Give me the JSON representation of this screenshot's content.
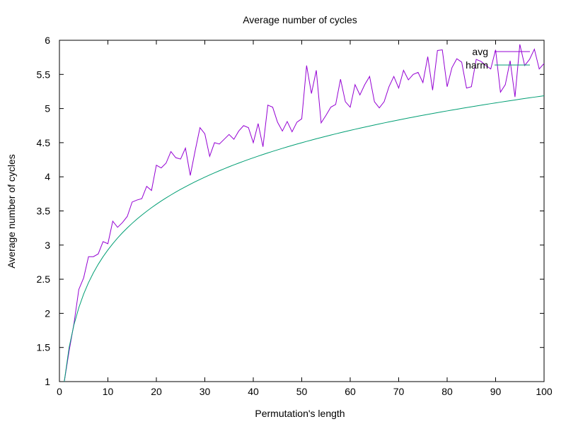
{
  "chart_data": {
    "type": "line",
    "title": "Average number of cycles",
    "xlabel": "Permutation's length",
    "ylabel": "Average number of cycles",
    "xlim": [
      0,
      100
    ],
    "ylim": [
      1,
      6
    ],
    "xticks": [
      0,
      10,
      20,
      30,
      40,
      50,
      60,
      70,
      80,
      90,
      100
    ],
    "yticks": [
      1,
      1.5,
      2,
      2.5,
      3,
      3.5,
      4,
      4.5,
      5,
      5.5,
      6
    ],
    "xtick_labels": [
      "0",
      "10",
      "20",
      "30",
      "40",
      "50",
      "60",
      "70",
      "80",
      "90",
      "100"
    ],
    "ytick_labels": [
      "1",
      "1.5",
      "2",
      "2.5",
      "3",
      "3.5",
      "4",
      "4.5",
      "5",
      "5.5",
      "6"
    ],
    "grid": false,
    "legend_position": "top-right",
    "series": [
      {
        "name": "avg",
        "color": "#9400d3",
        "x": [
          1,
          2,
          3,
          4,
          5,
          6,
          7,
          8,
          9,
          10,
          11,
          12,
          13,
          14,
          15,
          16,
          17,
          18,
          19,
          20,
          21,
          22,
          23,
          24,
          25,
          26,
          27,
          28,
          29,
          30,
          31,
          32,
          33,
          34,
          35,
          36,
          37,
          38,
          39,
          40,
          41,
          42,
          43,
          44,
          45,
          46,
          47,
          48,
          49,
          50,
          51,
          52,
          53,
          54,
          55,
          56,
          57,
          58,
          59,
          60,
          61,
          62,
          63,
          64,
          65,
          66,
          67,
          68,
          69,
          70,
          71,
          72,
          73,
          74,
          75,
          76,
          77,
          78,
          79,
          80,
          81,
          82,
          83,
          84,
          85,
          86,
          87,
          88,
          89,
          90,
          91,
          92,
          93,
          94,
          95,
          96,
          97,
          98,
          99,
          100
        ],
        "values": [
          1.0,
          1.45,
          1.85,
          2.35,
          2.52,
          2.83,
          2.83,
          2.87,
          3.05,
          3.02,
          3.35,
          3.26,
          3.33,
          3.42,
          3.63,
          3.66,
          3.68,
          3.86,
          3.8,
          4.17,
          4.13,
          4.2,
          4.37,
          4.28,
          4.26,
          4.42,
          4.02,
          4.38,
          4.72,
          4.63,
          4.3,
          4.5,
          4.48,
          4.55,
          4.62,
          4.55,
          4.67,
          4.75,
          4.72,
          4.5,
          4.78,
          4.44,
          5.05,
          5.02,
          4.8,
          4.67,
          4.81,
          4.66,
          4.8,
          4.85,
          5.63,
          5.22,
          5.56,
          4.79,
          4.9,
          5.02,
          5.06,
          5.43,
          5.1,
          5.02,
          5.35,
          5.2,
          5.35,
          5.47,
          5.1,
          5.01,
          5.1,
          5.32,
          5.47,
          5.3,
          5.56,
          5.42,
          5.5,
          5.53,
          5.38,
          5.76,
          5.27,
          5.85,
          5.86,
          5.32,
          5.6,
          5.73,
          5.68,
          5.3,
          5.32,
          5.72,
          5.69,
          5.63,
          5.58,
          5.86,
          5.24,
          5.35,
          5.7,
          5.17,
          5.94,
          5.63,
          5.72,
          5.87,
          5.58,
          5.66
        ]
      },
      {
        "name": "harm",
        "color": "#009e73",
        "x": [
          1,
          2,
          3,
          4,
          5,
          6,
          7,
          8,
          9,
          10,
          11,
          12,
          13,
          14,
          15,
          16,
          17,
          18,
          19,
          20,
          21,
          22,
          23,
          24,
          25,
          26,
          27,
          28,
          29,
          30,
          31,
          32,
          33,
          34,
          35,
          36,
          37,
          38,
          39,
          40,
          41,
          42,
          43,
          44,
          45,
          46,
          47,
          48,
          49,
          50,
          51,
          52,
          53,
          54,
          55,
          56,
          57,
          58,
          59,
          60,
          61,
          62,
          63,
          64,
          65,
          66,
          67,
          68,
          69,
          70,
          71,
          72,
          73,
          74,
          75,
          76,
          77,
          78,
          79,
          80,
          81,
          82,
          83,
          84,
          85,
          86,
          87,
          88,
          89,
          90,
          91,
          92,
          93,
          94,
          95,
          96,
          97,
          98,
          99,
          100
        ],
        "values": [
          1.0,
          1.5,
          1.8333,
          2.0833,
          2.2833,
          2.45,
          2.5929,
          2.7179,
          2.829,
          2.929,
          3.0199,
          3.1032,
          3.1801,
          3.2516,
          3.3182,
          3.3807,
          3.4396,
          3.4951,
          3.5477,
          3.5977,
          3.6454,
          3.6908,
          3.7343,
          3.776,
          3.816,
          3.8544,
          3.8915,
          3.9272,
          3.9617,
          3.995,
          4.0272,
          4.0585,
          4.0888,
          4.1182,
          4.1468,
          4.1746,
          4.2016,
          4.2279,
          4.2535,
          4.2785,
          4.3029,
          4.3267,
          4.35,
          4.3727,
          4.3949,
          4.4167,
          4.4379,
          4.4588,
          4.4792,
          4.4992,
          4.5188,
          4.538,
          4.5569,
          4.5754,
          4.5936,
          4.6115,
          4.629,
          4.6463,
          4.6632,
          4.6799,
          4.6963,
          4.7124,
          4.7283,
          4.7439,
          4.7593,
          4.7744,
          4.7894,
          4.8041,
          4.8186,
          4.8328,
          4.8469,
          4.8608,
          4.8745,
          4.888,
          4.9014,
          4.9145,
          4.9275,
          4.9403,
          4.953,
          4.9655,
          4.9778,
          4.99,
          5.0021,
          5.014,
          5.0257,
          5.0374,
          5.0489,
          5.0602,
          5.0715,
          5.0826,
          5.0936,
          5.1044,
          5.1152,
          5.1258,
          5.1363,
          5.1468,
          5.1571,
          5.1673,
          5.1774,
          5.1874
        ]
      }
    ]
  }
}
